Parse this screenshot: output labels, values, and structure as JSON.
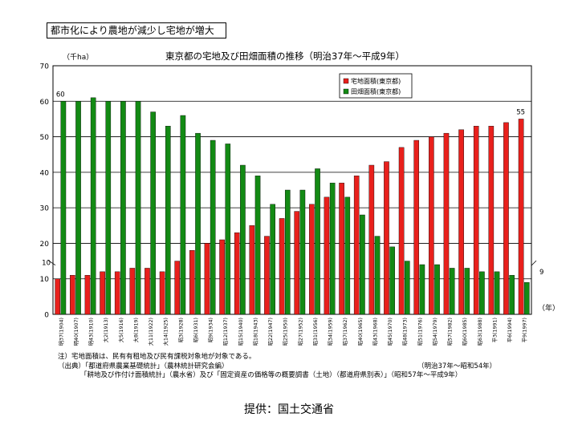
{
  "headline": "都市化により農地が減少し宅地が増大",
  "unit": "（千ha）",
  "year_unit": "（年）",
  "credit": "提供：国土交通省",
  "notes": {
    "line1": "注）宅地面積は、民有有租地及び民有課税対象地が対象である。",
    "line2": "（出典）「都道府県農業基礎統計」（農林統計研究会編）",
    "line2_right": "（明治37年～昭和54年）",
    "line3": "「耕地及び作付け面積統計」（農水省）及び「固定資産の価格等の概要調書（土地）（都道府県別表）」（昭和57年～平成9年）"
  },
  "colors": {
    "residential": "#e8201c",
    "farmland": "#138a14"
  },
  "chart_data": {
    "type": "bar",
    "title": "東京都の宅地及び田畑面積の推移（明治37年～平成9年）",
    "xlabel": "（年）",
    "ylabel": "（千ha）",
    "ylim": [
      0,
      70
    ],
    "yticks": [
      0,
      10,
      20,
      30,
      40,
      50,
      60,
      70
    ],
    "grid": true,
    "legend_position": "top-right",
    "categories": [
      "明37(1904)",
      "明40(1907)",
      "明43(1910)",
      "大2(1913)",
      "大5(1916)",
      "大8(1919)",
      "大11(1922)",
      "大14(1925)",
      "昭3(1928)",
      "昭6(1931)",
      "昭9(1934)",
      "昭12(1937)",
      "昭15(1940)",
      "昭18(1943)",
      "昭22(1947)",
      "昭25(1950)",
      "昭27(1952)",
      "昭31(1956)",
      "昭34(1959)",
      "昭37(1962)",
      "昭40(1965)",
      "昭43(1968)",
      "昭45(1970)",
      "昭48(1973)",
      "昭51(1976)",
      "昭54(1979)",
      "昭57(1982)",
      "昭60(1985)",
      "昭63(1988)",
      "平3(1991)",
      "平6(1994)",
      "平9(1997)"
    ],
    "series": [
      {
        "name": "宅地面積(東京都)",
        "color": "#e8201c",
        "values": [
          10,
          11,
          11,
          12,
          12,
          13,
          13,
          12,
          15,
          18,
          20,
          21,
          23,
          25,
          22,
          27,
          29,
          31,
          33,
          37,
          39,
          42,
          43,
          47,
          49,
          50,
          51,
          52,
          53,
          53,
          54,
          55
        ]
      },
      {
        "name": "田畑面積(東京都)",
        "color": "#138a14",
        "values": [
          60,
          60,
          61,
          60,
          60,
          60,
          57,
          53,
          56,
          51,
          49,
          48,
          42,
          39,
          31,
          35,
          35,
          41,
          37,
          33,
          28,
          22,
          19,
          15,
          14,
          14,
          13,
          13,
          12,
          12,
          11,
          9
        ]
      }
    ],
    "annotations": [
      {
        "text": "60",
        "series": 1,
        "index": 0
      },
      {
        "text": "10",
        "series": 0,
        "index": 0
      },
      {
        "text": "55",
        "series": 0,
        "index": 31
      },
      {
        "text": "9",
        "series": 1,
        "index": 31
      }
    ]
  }
}
